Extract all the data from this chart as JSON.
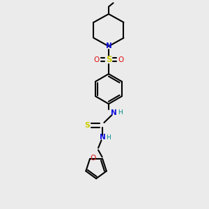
{
  "background_color": "#ebebeb",
  "bond_color": "#000000",
  "bond_width": 1.5,
  "atom_colors": {
    "C": "#000000",
    "N": "#1010dd",
    "O": "#dd1010",
    "S_sulfonyl": "#cccc00",
    "S_thio": "#cccc00",
    "H": "#008888"
  },
  "figsize": [
    3.0,
    3.0
  ],
  "dpi": 100
}
